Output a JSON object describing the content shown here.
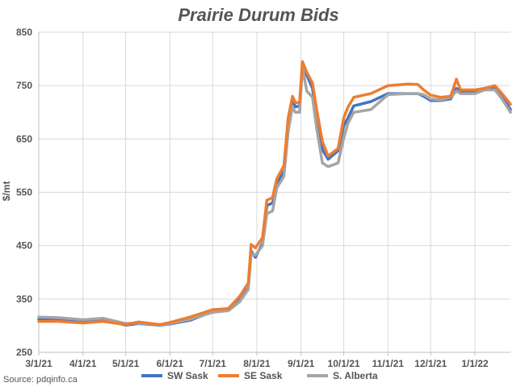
{
  "chart_data": {
    "type": "line",
    "title": "Prairie Durum Bids",
    "ylabel": "$/mt",
    "xlabel": "",
    "ylim": [
      250,
      850
    ],
    "yticks": [
      250,
      350,
      450,
      550,
      650,
      750,
      850
    ],
    "xlim": [
      "2021-03-01",
      "2022-01-26"
    ],
    "xticks": [
      "2021-03-01",
      "2021-04-01",
      "2021-05-01",
      "2021-06-01",
      "2021-07-01",
      "2021-08-01",
      "2021-09-01",
      "2021-10-01",
      "2021-11-01",
      "2021-12-01",
      "2022-01-01"
    ],
    "xtick_labels": [
      "3/1/21",
      "4/1/21",
      "5/1/21",
      "6/1/21",
      "7/1/21",
      "8/1/21",
      "9/1/21",
      "10/1/21",
      "11/1/21",
      "12/1/21",
      "1/1/22"
    ],
    "grid": true,
    "legend": "bottom",
    "source": "Source: pdqinfo.ca",
    "series": [
      {
        "name": "SW Sask",
        "color": "#4472c4",
        "points": [
          [
            "2021-03-01",
            312
          ],
          [
            "2021-03-15",
            311
          ],
          [
            "2021-04-01",
            309
          ],
          [
            "2021-04-15",
            312
          ],
          [
            "2021-05-01",
            301
          ],
          [
            "2021-05-10",
            304
          ],
          [
            "2021-05-25",
            301
          ],
          [
            "2021-06-01",
            303
          ],
          [
            "2021-06-15",
            310
          ],
          [
            "2021-07-01",
            326
          ],
          [
            "2021-07-12",
            330
          ],
          [
            "2021-07-20",
            350
          ],
          [
            "2021-07-26",
            375
          ],
          [
            "2021-07-28",
            440
          ],
          [
            "2021-07-31",
            428
          ],
          [
            "2021-08-05",
            455
          ],
          [
            "2021-08-08",
            525
          ],
          [
            "2021-08-12",
            530
          ],
          [
            "2021-08-15",
            565
          ],
          [
            "2021-08-20",
            590
          ],
          [
            "2021-08-23",
            680
          ],
          [
            "2021-08-26",
            725
          ],
          [
            "2021-08-28",
            710
          ],
          [
            "2021-08-31",
            712
          ],
          [
            "2021-09-02",
            790
          ],
          [
            "2021-09-05",
            770
          ],
          [
            "2021-09-09",
            745
          ],
          [
            "2021-09-12",
            690
          ],
          [
            "2021-09-16",
            630
          ],
          [
            "2021-09-20",
            612
          ],
          [
            "2021-09-27",
            628
          ],
          [
            "2021-10-01",
            675
          ],
          [
            "2021-10-04",
            690
          ],
          [
            "2021-10-08",
            712
          ],
          [
            "2021-10-20",
            720
          ],
          [
            "2021-11-01",
            735
          ],
          [
            "2021-11-15",
            735
          ],
          [
            "2021-11-22",
            735
          ],
          [
            "2021-11-26",
            730
          ],
          [
            "2021-12-01",
            722
          ],
          [
            "2021-12-08",
            722
          ],
          [
            "2021-12-15",
            725
          ],
          [
            "2021-12-19",
            745
          ],
          [
            "2021-12-22",
            738
          ],
          [
            "2022-01-01",
            740
          ],
          [
            "2022-01-08",
            745
          ],
          [
            "2022-01-15",
            745
          ],
          [
            "2022-01-20",
            730
          ],
          [
            "2022-01-26",
            705
          ]
        ]
      },
      {
        "name": "SE Sask",
        "color": "#ed7d31",
        "points": [
          [
            "2021-03-01",
            308
          ],
          [
            "2021-03-15",
            308
          ],
          [
            "2021-04-01",
            305
          ],
          [
            "2021-04-15",
            308
          ],
          [
            "2021-05-01",
            302
          ],
          [
            "2021-05-10",
            307
          ],
          [
            "2021-05-25",
            302
          ],
          [
            "2021-06-01",
            306
          ],
          [
            "2021-06-15",
            316
          ],
          [
            "2021-07-01",
            330
          ],
          [
            "2021-07-12",
            332
          ],
          [
            "2021-07-20",
            355
          ],
          [
            "2021-07-26",
            380
          ],
          [
            "2021-07-28",
            452
          ],
          [
            "2021-07-31",
            446
          ],
          [
            "2021-08-05",
            465
          ],
          [
            "2021-08-08",
            535
          ],
          [
            "2021-08-12",
            540
          ],
          [
            "2021-08-15",
            575
          ],
          [
            "2021-08-20",
            600
          ],
          [
            "2021-08-23",
            690
          ],
          [
            "2021-08-26",
            730
          ],
          [
            "2021-08-28",
            718
          ],
          [
            "2021-08-31",
            718
          ],
          [
            "2021-09-02",
            795
          ],
          [
            "2021-09-05",
            775
          ],
          [
            "2021-09-09",
            755
          ],
          [
            "2021-09-12",
            705
          ],
          [
            "2021-09-16",
            645
          ],
          [
            "2021-09-20",
            618
          ],
          [
            "2021-09-27",
            632
          ],
          [
            "2021-10-01",
            690
          ],
          [
            "2021-10-04",
            710
          ],
          [
            "2021-10-08",
            728
          ],
          [
            "2021-10-20",
            735
          ],
          [
            "2021-11-01",
            750
          ],
          [
            "2021-11-15",
            753
          ],
          [
            "2021-11-22",
            752
          ],
          [
            "2021-11-26",
            742
          ],
          [
            "2021-12-01",
            732
          ],
          [
            "2021-12-08",
            728
          ],
          [
            "2021-12-15",
            730
          ],
          [
            "2021-12-19",
            762
          ],
          [
            "2021-12-22",
            742
          ],
          [
            "2022-01-01",
            742
          ],
          [
            "2022-01-08",
            745
          ],
          [
            "2022-01-15",
            750
          ],
          [
            "2022-01-20",
            735
          ],
          [
            "2022-01-26",
            715
          ]
        ]
      },
      {
        "name": "S. Alberta",
        "color": "#a5a5a5",
        "points": [
          [
            "2021-03-01",
            316
          ],
          [
            "2021-03-15",
            315
          ],
          [
            "2021-04-01",
            311
          ],
          [
            "2021-04-15",
            314
          ],
          [
            "2021-05-01",
            304
          ],
          [
            "2021-05-10",
            305
          ],
          [
            "2021-05-25",
            302
          ],
          [
            "2021-06-01",
            304
          ],
          [
            "2021-06-15",
            312
          ],
          [
            "2021-07-01",
            325
          ],
          [
            "2021-07-12",
            328
          ],
          [
            "2021-07-20",
            345
          ],
          [
            "2021-07-26",
            368
          ],
          [
            "2021-07-28",
            435
          ],
          [
            "2021-07-31",
            432
          ],
          [
            "2021-08-05",
            450
          ],
          [
            "2021-08-08",
            510
          ],
          [
            "2021-08-12",
            515
          ],
          [
            "2021-08-15",
            558
          ],
          [
            "2021-08-20",
            580
          ],
          [
            "2021-08-23",
            665
          ],
          [
            "2021-08-26",
            710
          ],
          [
            "2021-08-28",
            700
          ],
          [
            "2021-08-31",
            700
          ],
          [
            "2021-09-02",
            785
          ],
          [
            "2021-09-05",
            740
          ],
          [
            "2021-09-09",
            728
          ],
          [
            "2021-09-12",
            670
          ],
          [
            "2021-09-16",
            605
          ],
          [
            "2021-09-20",
            598
          ],
          [
            "2021-09-27",
            605
          ],
          [
            "2021-10-01",
            652
          ],
          [
            "2021-10-04",
            680
          ],
          [
            "2021-10-08",
            700
          ],
          [
            "2021-10-20",
            705
          ],
          [
            "2021-11-01",
            733
          ],
          [
            "2021-11-15",
            735
          ],
          [
            "2021-11-22",
            735
          ],
          [
            "2021-11-26",
            733
          ],
          [
            "2021-12-01",
            725
          ],
          [
            "2021-12-08",
            723
          ],
          [
            "2021-12-15",
            728
          ],
          [
            "2021-12-19",
            740
          ],
          [
            "2021-12-22",
            735
          ],
          [
            "2022-01-01",
            735
          ],
          [
            "2022-01-08",
            742
          ],
          [
            "2022-01-15",
            742
          ],
          [
            "2022-01-20",
            725
          ],
          [
            "2022-01-26",
            700
          ]
        ]
      }
    ]
  }
}
